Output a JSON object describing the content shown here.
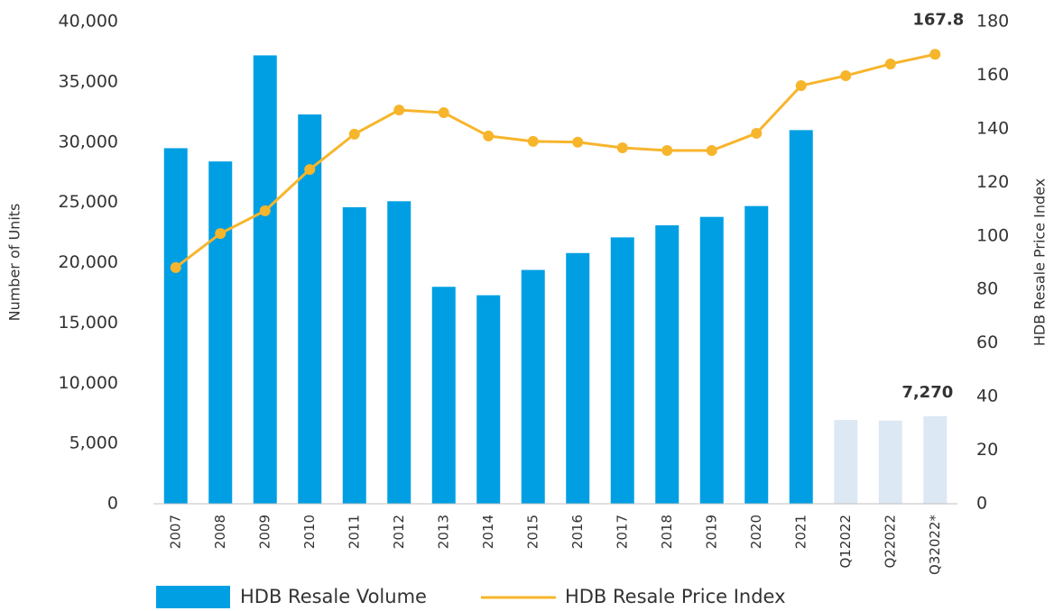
{
  "chart_data": {
    "type": "bar_line",
    "categories": [
      "2007",
      "2008",
      "2009",
      "2010",
      "2011",
      "2012",
      "2013",
      "2014",
      "2015",
      "2016",
      "2017",
      "2018",
      "2019",
      "2020",
      "2021",
      "Q12022",
      "Q22022",
      "Q32022*"
    ],
    "series": [
      {
        "name": "HDB Resale Volume",
        "type": "bar",
        "color": "#009fe3",
        "colors": [
          "#009fe3",
          "#009fe3",
          "#009fe3",
          "#009fe3",
          "#009fe3",
          "#009fe3",
          "#009fe3",
          "#009fe3",
          "#009fe3",
          "#009fe3",
          "#009fe3",
          "#009fe3",
          "#009fe3",
          "#009fe3",
          "#009fe3",
          "#dde8f5",
          "#dde8f5",
          "#dde8f5"
        ],
        "values": [
          29500,
          28400,
          37200,
          32300,
          24600,
          25100,
          18000,
          17300,
          19400,
          20800,
          22100,
          23100,
          23800,
          24700,
          31000,
          6950,
          6900,
          7270
        ],
        "value_labels": [
          null,
          null,
          null,
          null,
          null,
          null,
          null,
          null,
          null,
          null,
          null,
          null,
          null,
          null,
          null,
          null,
          null,
          "7,270"
        ]
      },
      {
        "name": "HDB Resale Price Index",
        "type": "line",
        "axis": "y2",
        "color": "#f7b52c",
        "values": [
          88.2,
          100.9,
          109.4,
          124.8,
          138,
          147,
          146,
          137.3,
          135.3,
          135,
          132.9,
          131.9,
          131.9,
          138.3,
          156.1,
          159.8,
          164.2,
          167.8
        ],
        "value_labels": [
          null,
          null,
          null,
          null,
          null,
          null,
          null,
          null,
          null,
          null,
          null,
          null,
          null,
          null,
          null,
          null,
          null,
          "167.8"
        ]
      }
    ],
    "ylabel": "Number of Units",
    "y2label": "HDB Resale Price Index",
    "ylim": [
      0,
      40000
    ],
    "yticks": [
      0,
      {
        "value": 5000,
        "label": "5,000"
      },
      {
        "value": 10000,
        "label": "10,000"
      },
      {
        "value": 15000,
        "label": "15,000"
      },
      {
        "value": 20000,
        "label": "20,000"
      },
      {
        "value": 25000,
        "label": "25,000"
      },
      {
        "value": 30000,
        "label": "30,000"
      },
      {
        "value": 35000,
        "label": "35,000"
      },
      {
        "value": 40000,
        "label": "40,000"
      }
    ],
    "y2lim": [
      0,
      180
    ],
    "y2ticks": [
      0,
      20,
      40,
      60,
      80,
      100,
      120,
      140,
      160,
      180
    ],
    "legend": "bottom",
    "grid": false
  }
}
